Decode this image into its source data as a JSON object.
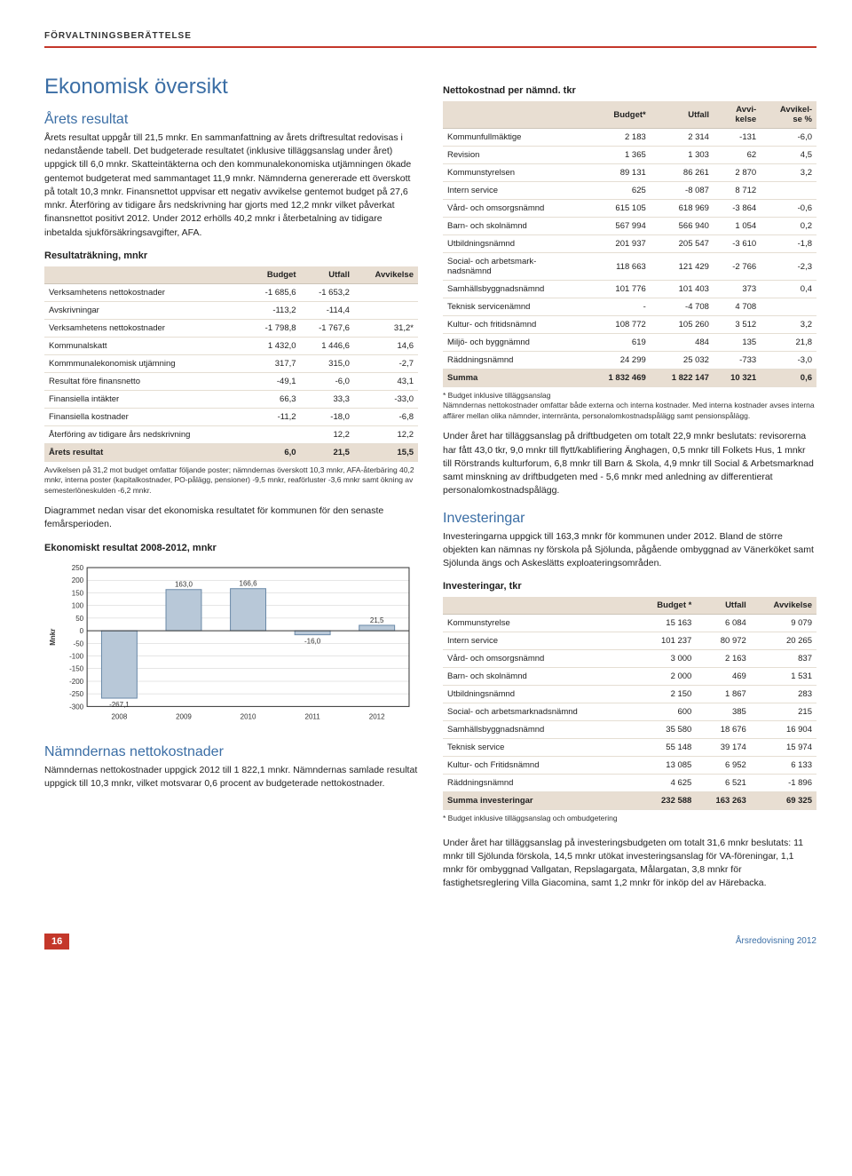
{
  "header_label": "FÖRVALTNINGSBERÄTTELSE",
  "title": "Ekonomisk översikt",
  "section1": {
    "heading": "Årets resultat",
    "body": "Årets resultat uppgår till 21,5 mnkr. En sammanfattning av årets driftresultat redovisas i nedanstående tabell. Det budgeterade resultatet (inklusive tilläggsanslag under året) uppgick till 6,0 mnkr. Skatteintäkterna och den kommunalekonomiska utjämningen ökade gentemot budgeterat med sammantaget 11,9 mnkr. Nämnderna genererade ett överskott på totalt 10,3 mnkr. Finansnettot uppvisar ett negativ avvikelse gentemot budget på 27,6 mnkr. Återföring av tidigare års nedskrivning har gjorts med 12,2 mnkr vilket påverkat finansnettot positivt 2012. Under 2012 erhölls 40,2 mnkr i återbetalning av tidigare inbetalda sjukförsäkringsavgifter, AFA."
  },
  "table1": {
    "title": "Resultaträkning, mnkr",
    "columns": [
      "",
      "Budget",
      "Utfall",
      "Avvikelse"
    ],
    "rows": [
      [
        "Verksamhetens nettokostnader",
        "-1 685,6",
        "-1 653,2",
        ""
      ],
      [
        "Avskrivningar",
        "-113,2",
        "-114,4",
        ""
      ],
      [
        "Verksamhetens nettokostnader",
        "-1 798,8",
        "-1 767,6",
        "31,2*"
      ],
      [
        "Kommunalskatt",
        "1 432,0",
        "1 446,6",
        "14,6"
      ],
      [
        "Kommmunalekonomisk utjämning",
        "317,7",
        "315,0",
        "-2,7"
      ],
      [
        "Resultat före finansnetto",
        "-49,1",
        "-6,0",
        "43,1"
      ],
      [
        "Finansiella intäkter",
        "66,3",
        "33,3",
        "-33,0"
      ],
      [
        "Finansiella kostnader",
        "-11,2",
        "-18,0",
        "-6,8"
      ],
      [
        "Återföring av tidigare års nedskrivning",
        "",
        "12,2",
        "12,2"
      ]
    ],
    "sum_row": [
      "Årets resultat",
      "6,0",
      "21,5",
      "15,5"
    ],
    "footnote": "Avvikelsen på 31,2 mot budget omfattar följande poster; nämndernas överskott 10,3 mnkr, AFA-återbäring 40,2 mnkr, interna poster (kapitalkostnader, PO-pålägg, pensioner) -9,5 mnkr, reaförluster -3,6 mnkr samt ökning av semesterlöneskulden -6,2 mnkr."
  },
  "chart_intro": "Diagrammet nedan visar det ekonomiska resultatet för kommunen för den senaste femårsperioden.",
  "chart": {
    "title": "Ekonomiskt resultat 2008-2012, mnkr",
    "type": "bar",
    "categories": [
      "2008",
      "2009",
      "2010",
      "2011",
      "2012"
    ],
    "values": [
      -267.1,
      163.0,
      166.6,
      -16.0,
      21.5
    ],
    "value_labels": [
      "-267,1",
      "163,0",
      "166,6",
      "-16,0",
      "21,5"
    ],
    "ylabel": "Mnkr",
    "ymin": -300,
    "ymax": 250,
    "ytick_step": 50,
    "bar_color": "#b8c8d8",
    "bar_border": "#6a89a8",
    "grid_color": "#cccccc",
    "axis_color": "#333333",
    "tick_fontsize": 8,
    "label_fontsize": 8,
    "bar_width": 0.55,
    "background": "#ffffff"
  },
  "section2": {
    "heading": "Nämndernas nettokostnader",
    "body": "Nämndernas nettokostnader uppgick 2012 till 1 822,1 mnkr. Nämndernas samlade resultat uppgick till 10,3 mnkr, vilket motsvarar 0,6 procent av budgeterade nettokostnader."
  },
  "table2": {
    "title": "Nettokostnad per nämnd. tkr",
    "columns": [
      "",
      "Budget*",
      "Utfall",
      "Avvi-\nkelse",
      "Avvikel-\nse %"
    ],
    "rows": [
      [
        "Kommunfullmäktige",
        "2 183",
        "2 314",
        "-131",
        "-6,0"
      ],
      [
        "Revision",
        "1 365",
        "1 303",
        "62",
        "4,5"
      ],
      [
        "Kommunstyrelsen",
        "89 131",
        "86 261",
        "2 870",
        "3,2"
      ],
      [
        "Intern service",
        "625",
        "-8 087",
        "8 712",
        ""
      ],
      [
        "Vård- och omsorgsnämnd",
        "615 105",
        "618 969",
        "-3 864",
        "-0,6"
      ],
      [
        "Barn- och skolnämnd",
        "567 994",
        "566 940",
        "1 054",
        "0,2"
      ],
      [
        "Utbildningsnämnd",
        "201 937",
        "205 547",
        "-3 610",
        "-1,8"
      ],
      [
        "Social- och arbetsmark-\nnadsnämnd",
        "118 663",
        "121 429",
        "-2 766",
        "-2,3"
      ],
      [
        "Samhällsbyggnadsnämnd",
        "101 776",
        "101 403",
        "373",
        "0,4"
      ],
      [
        "Teknisk servicenämnd",
        "-",
        "-4 708",
        "4 708",
        ""
      ],
      [
        "Kultur- och fritidsnämnd",
        "108 772",
        "105 260",
        "3 512",
        "3,2"
      ],
      [
        "Miljö- och byggnämnd",
        "619",
        "484",
        "135",
        "21,8"
      ],
      [
        "Räddningsnämnd",
        "24 299",
        "25 032",
        "-733",
        "-3,0"
      ]
    ],
    "sum_row": [
      "Summa",
      "1 832 469",
      "1 822 147",
      "10 321",
      "0,6"
    ],
    "footnote": "* Budget inklusive tilläggsanslag\nNämndernas nettokostnader omfattar både externa och interna kostnader. Med interna kostnader avses interna affärer mellan olika nämnder, internränta, personalomkostnadspålägg samt pensionspålägg."
  },
  "para_after_t2": "Under året har tilläggsanslag på driftbudgeten om totalt 22,9 mnkr beslutats: revisorerna har fått 43,0 tkr, 9,0 mnkr till flytt/kablifiering Änghagen, 0,5 mnkr till Folkets Hus, 1 mnkr till Rörstrands kulturforum, 6,8 mnkr till Barn & Skola, 4,9 mnkr till Social & Arbetsmarknad samt minskning av driftbudgeten med - 5,6 mnkr med anledning av differentierat personalomkostnadspålägg.",
  "section3": {
    "heading": "Investeringar",
    "body": "Investeringarna uppgick till 163,3 mnkr för kommunen under 2012. Bland de större objekten kan nämnas ny förskola på Sjölunda, pågående ombyggnad av Vänerköket samt Sjölunda ängs och Askeslätts exploateringsområden."
  },
  "table3": {
    "title": "Investeringar, tkr",
    "columns": [
      "",
      "Budget *",
      "Utfall",
      "Avvikelse"
    ],
    "rows": [
      [
        "Kommunstyrelse",
        "15 163",
        "6 084",
        "9 079"
      ],
      [
        "Intern service",
        "101 237",
        "80 972",
        "20 265"
      ],
      [
        "Vård- och omsorgsnämnd",
        "3 000",
        "2 163",
        "837"
      ],
      [
        "Barn- och skolnämnd",
        "2 000",
        "469",
        "1 531"
      ],
      [
        "Utbildningsnämnd",
        "2 150",
        "1 867",
        "283"
      ],
      [
        "Social- och arbetsmarknadsnämnd",
        "600",
        "385",
        "215"
      ],
      [
        "Samhällsbyggnadsnämnd",
        "35 580",
        "18 676",
        "16 904"
      ],
      [
        "Teknisk service",
        "55 148",
        "39 174",
        "15 974"
      ],
      [
        "Kultur- och Fritidsnämnd",
        "13 085",
        "6 952",
        "6 133"
      ],
      [
        "Räddningsnämnd",
        "4 625",
        "6 521",
        "-1 896"
      ]
    ],
    "sum_row": [
      "Summa investeringar",
      "232 588",
      "163 263",
      "69 325"
    ],
    "footnote": "* Budget inklusive tilläggsanslag och ombudgetering"
  },
  "para_after_t3": "Under året har tilläggsanslag på investeringsbudgeten om totalt 31,6 mnkr beslutats: 11 mnkr till Sjölunda förskola, 14,5 mnkr utökat investeringsanslag för VA-föreningar, 1,1 mnkr för ombyggnad Vallgatan, Repslagargata, Målargatan, 3,8 mnkr för fastighetsreglering Villa Giacomina, samt 1,2 mnkr för inköp del av Härebacka.",
  "footer": {
    "page": "16",
    "right": "Årsredovisning 2012"
  }
}
